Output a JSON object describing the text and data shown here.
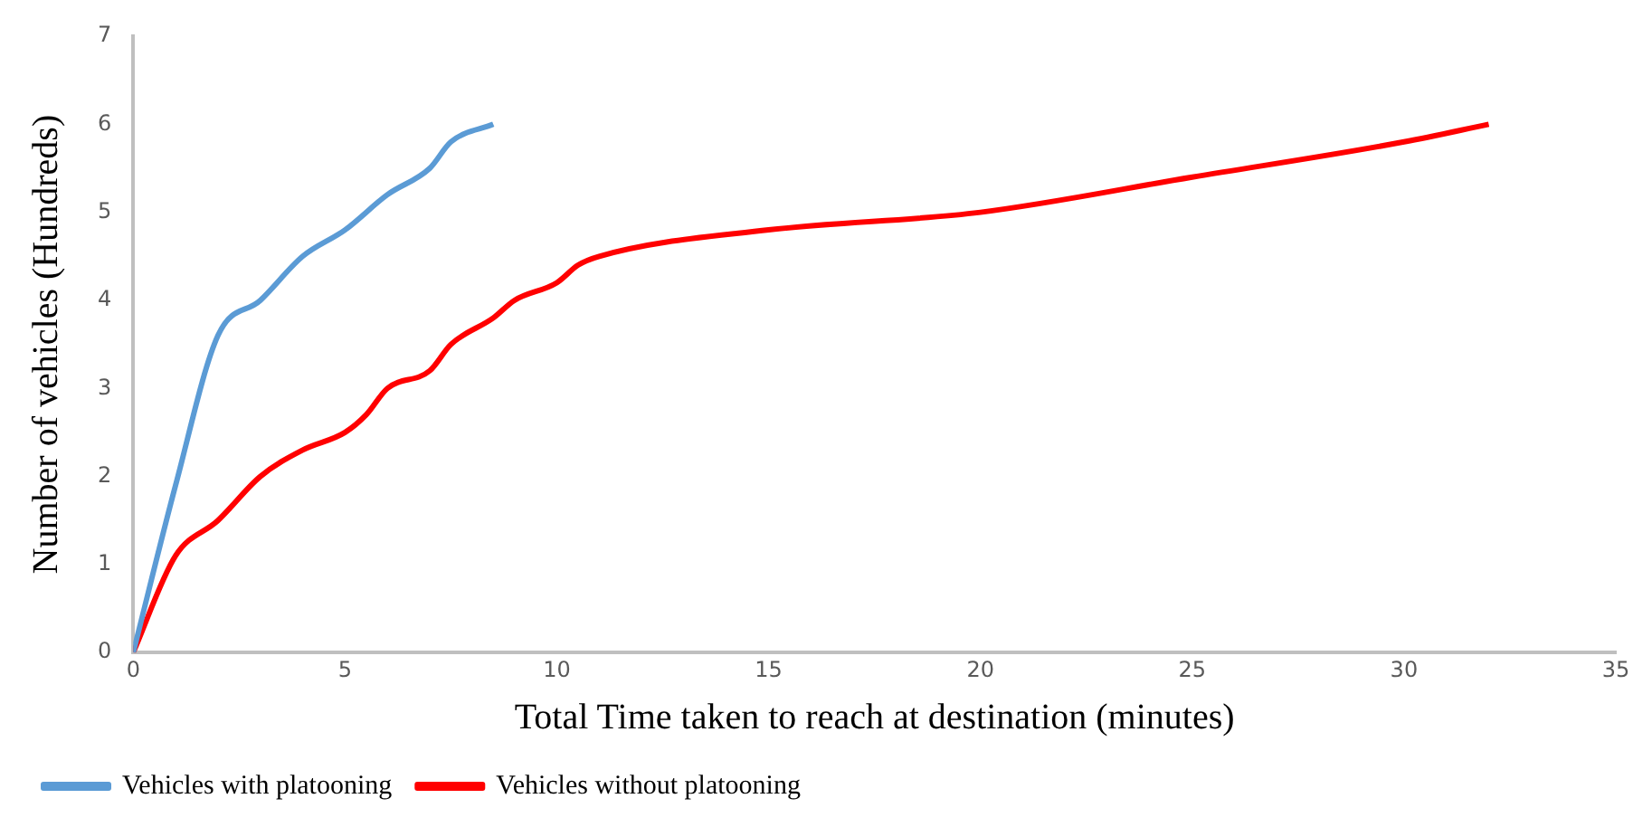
{
  "chart_data": {
    "type": "line",
    "xlabel": "Total Time taken to reach at destination (minutes)",
    "ylabel": "Number of vehicles (Hundreds)",
    "xlim": [
      0,
      35
    ],
    "xticks": [
      0,
      5,
      10,
      15,
      20,
      25,
      30,
      35
    ],
    "ylim": [
      0,
      7
    ],
    "yticks": [
      0,
      1,
      2,
      3,
      4,
      5,
      6,
      7
    ],
    "grid": false,
    "legend": "bottom",
    "marker": "none",
    "line_style": "solid",
    "series": [
      {
        "name": "Vehicles with platooning",
        "color": "#5b9bd5",
        "x": [
          0,
          1,
          2,
          3,
          4,
          5,
          6,
          7,
          7.5,
          8.5
        ],
        "values": [
          0,
          1.9,
          3.6,
          4,
          4.5,
          4.8,
          5.2,
          5.5,
          5.8,
          6
        ]
      },
      {
        "name": "Vehicles without platooning",
        "color": "#ff0000",
        "x": [
          0,
          1,
          2,
          3,
          4,
          5,
          5.5,
          6,
          7,
          7.5,
          8.5,
          9,
          10,
          10.5,
          11,
          15,
          20,
          25,
          30,
          32
        ],
        "values": [
          0,
          1.1,
          1.5,
          2,
          2.3,
          2.5,
          2.7,
          3,
          3.2,
          3.5,
          3.8,
          4,
          4.2,
          4.4,
          4.5,
          4.8,
          5,
          5.4,
          5.8,
          6
        ]
      }
    ]
  }
}
